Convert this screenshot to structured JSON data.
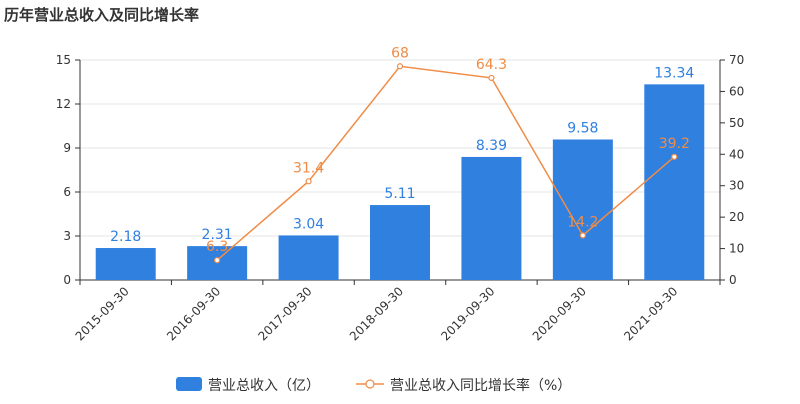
{
  "chart_data": {
    "title": "历年营业总收入及同比增长率",
    "type": "bar",
    "categories": [
      "2015-09-30",
      "2016-09-30",
      "2017-09-30",
      "2018-09-30",
      "2019-09-30",
      "2020-09-30",
      "2021-09-30"
    ],
    "series": [
      {
        "name": "营业总收入（亿）",
        "type": "bar",
        "axis": "left",
        "values": [
          2.18,
          2.31,
          3.04,
          5.11,
          8.39,
          9.58,
          13.34
        ],
        "labels": [
          "2.18",
          "2.31",
          "3.04",
          "5.11",
          "8.39",
          "9.58",
          "13.34"
        ],
        "color": "#3080e0"
      },
      {
        "name": "营业总收入同比增长率（%）",
        "type": "line",
        "axis": "right",
        "values": [
          null,
          6.3,
          31.4,
          68,
          64.3,
          14.2,
          39.2
        ],
        "labels": [
          "",
          "6.3",
          "31.4",
          "68",
          "64.3",
          "14.2",
          "39.2"
        ],
        "color": "#f08c46"
      }
    ],
    "y_left": {
      "min": 0,
      "max": 15,
      "ticks": [
        "0",
        "3",
        "6",
        "9",
        "12",
        "15"
      ]
    },
    "y_right": {
      "min": 0,
      "max": 70,
      "ticks": [
        "0",
        "10",
        "20",
        "30",
        "40",
        "50",
        "60",
        "70"
      ]
    },
    "grid": true,
    "legend_position": "bottom-center"
  }
}
